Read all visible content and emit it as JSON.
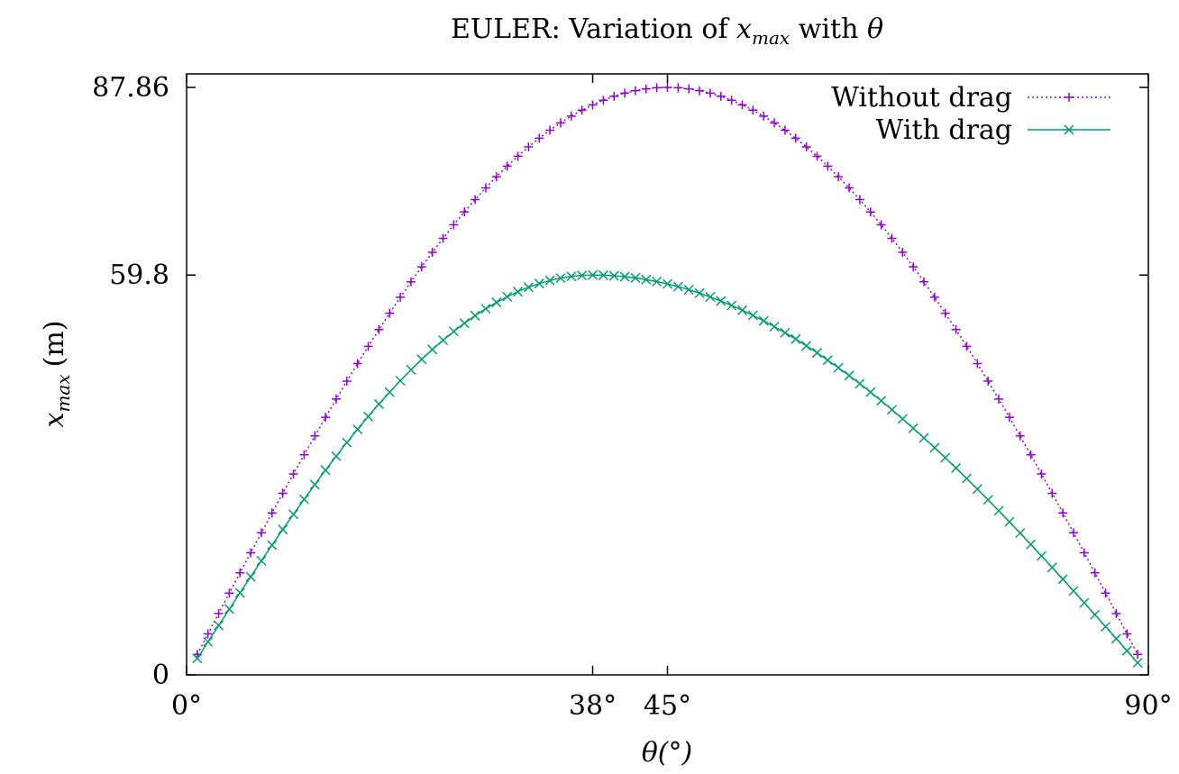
{
  "chart_data": {
    "type": "line",
    "title_prefix": "EULER: Variation of ",
    "title_var": "x",
    "title_sub": "max",
    "title_mid": " with ",
    "title_theta": "θ",
    "xlabel": "θ(°)",
    "ylabel_var": "x",
    "ylabel_sub": "max",
    "ylabel_unit": "(m)",
    "xlim": [
      0,
      90
    ],
    "ylim": [
      0,
      87.86
    ],
    "xticks": [
      {
        "value": 0,
        "label": "0°"
      },
      {
        "value": 38,
        "label": "38°"
      },
      {
        "value": 45,
        "label": "45°"
      },
      {
        "value": 90,
        "label": "90°"
      }
    ],
    "yticks": [
      {
        "value": 0,
        "label": "0"
      },
      {
        "value": 59.8,
        "label": "59.8"
      },
      {
        "value": 87.86,
        "label": "87.86"
      }
    ],
    "grid": false,
    "legend_position": "top-right",
    "series": [
      {
        "name": "Without drag",
        "color": "#9400d3",
        "line_style": "dotted",
        "marker": "plus",
        "model": {
          "peak": 87.86,
          "peak_angle": 45
        },
        "x_start": 1,
        "x_end": 89,
        "x_step": 1
      },
      {
        "name": "With drag",
        "color": "#009e73",
        "line_style": "solid",
        "marker": "cross",
        "model": {
          "peak": 59.8,
          "peak_angle": 38
        },
        "x_start": 1,
        "x_end": 89,
        "x_step": 1
      }
    ]
  }
}
